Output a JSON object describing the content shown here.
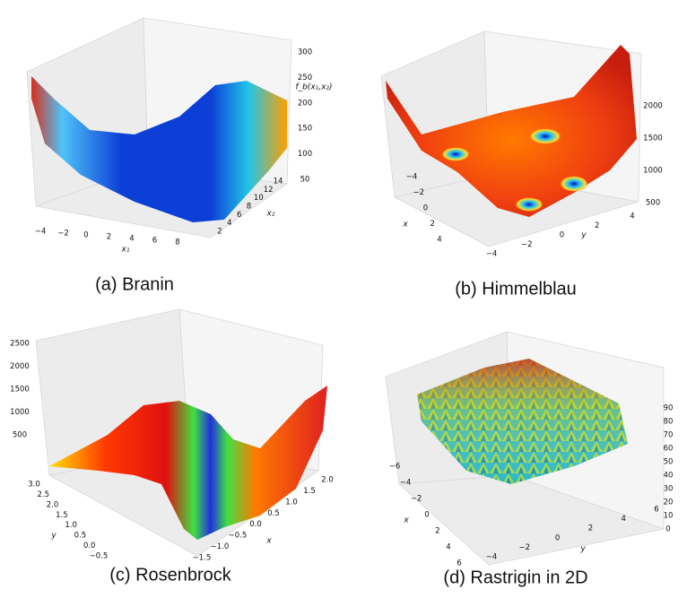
{
  "panels": [
    {
      "caption": "(a) Branin",
      "axes": [
        {
          "label": "x₁",
          "ticks": [
            "−4",
            "−2",
            "0",
            "2",
            "4",
            "6",
            "8"
          ]
        },
        {
          "label": "x₂",
          "ticks": [
            "2",
            "4",
            "6",
            "8",
            "10",
            "12",
            "14"
          ]
        },
        {
          "label": "f_b(x₁,x₂)",
          "ticks": [
            "50",
            "100",
            "150",
            "200",
            "250",
            "300"
          ]
        }
      ]
    },
    {
      "caption": "(b) Himmelblau",
      "axes": [
        {
          "label": "x",
          "ticks": [
            "−4",
            "−2",
            "0",
            "2",
            "4"
          ]
        },
        {
          "label": "y",
          "ticks": [
            "−4",
            "−2",
            "0",
            "2",
            "4"
          ]
        },
        {
          "label": "",
          "ticks": [
            "500",
            "1000",
            "1500",
            "2000"
          ]
        }
      ]
    },
    {
      "caption": "(c) Rosenbrock",
      "axes": [
        {
          "label": "y",
          "ticks": [
            "3.0",
            "2.5",
            "2.0",
            "1.5",
            "1.0",
            "0.5",
            "0.0",
            "−0.5"
          ]
        },
        {
          "label": "x",
          "ticks": [
            "−1.5",
            "−1.0",
            "−0.5",
            "0.0",
            "0.5",
            "1.0",
            "1.5",
            "2.0"
          ]
        },
        {
          "label": "",
          "ticks": [
            "500",
            "1000",
            "1500",
            "2000",
            "2500"
          ]
        }
      ]
    },
    {
      "caption": "(d) Rastrigin in 2D",
      "axes": [
        {
          "label": "x",
          "ticks": [
            "−6",
            "−4",
            "−2",
            "0",
            "2",
            "4",
            "6"
          ]
        },
        {
          "label": "y",
          "ticks": [
            "−4",
            "−2",
            "0",
            "2",
            "4",
            "6"
          ]
        },
        {
          "label": "",
          "ticks": [
            "0",
            "10",
            "20",
            "30",
            "40",
            "50",
            "60",
            "70",
            "80",
            "90"
          ]
        }
      ]
    }
  ]
}
